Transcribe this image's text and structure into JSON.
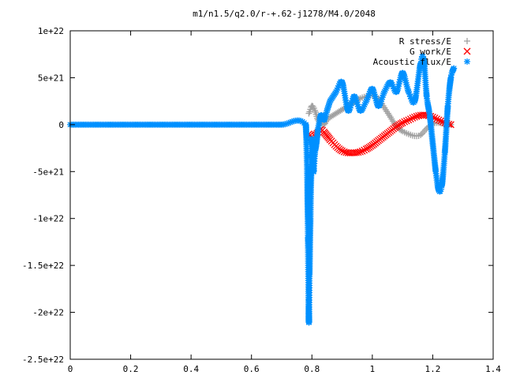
{
  "chart_data": {
    "type": "scatter",
    "title": "m1/n1.5/q2.0/r-+.62-j1278/M4.0/2048",
    "xlabel": "",
    "ylabel": "",
    "xlim": [
      0,
      1.4
    ],
    "ylim": [
      -2.5e+22,
      1e+22
    ],
    "grid": false,
    "legend_position": "top-right",
    "x_ticks": [
      0,
      0.2,
      0.4,
      0.6,
      0.8,
      1,
      1.2,
      1.4
    ],
    "x_tick_labels": [
      "0",
      "0.2",
      "0.4",
      "0.6",
      "0.8",
      "1",
      "1.2",
      "1.4"
    ],
    "y_ticks": [
      1e+22,
      5e+21,
      0,
      -5e+21,
      -1e+22,
      -1.5e+22,
      -2e+22,
      -2.5e+22
    ],
    "y_tick_labels": [
      "1e+22",
      "5e+21",
      "0",
      "-5e+21",
      "-1e+22",
      "-1.5e+22",
      "-2e+22",
      "-2.5e+22"
    ],
    "series": [
      {
        "name": "R stress/E",
        "marker": "+",
        "color": "#a0a0a0",
        "x": [
          0.79,
          0.8,
          0.81,
          0.82,
          0.83,
          0.84,
          0.85,
          0.86,
          0.88,
          0.9,
          0.92,
          0.94,
          0.96,
          0.98,
          1.0,
          1.02,
          1.04,
          1.06,
          1.08,
          1.1,
          1.12,
          1.14,
          1.16,
          1.18,
          1.2,
          1.22,
          1.24,
          1.26
        ],
        "values": [
          1.2e+21,
          2e+21,
          1.5e+21,
          5e+20,
          1e+20,
          0.0,
          5e+20,
          8e+20,
          1.2e+21,
          1.6e+21,
          2e+21,
          2.4e+21,
          2.8e+21,
          3e+21,
          3.1e+21,
          2.8e+21,
          1.8e+21,
          8e+20,
          -2e+20,
          -7e+20,
          -1e+21,
          -1.2e+21,
          -1.1e+21,
          -4e+20,
          1e+20,
          2e+20,
          1e+20,
          0.0
        ]
      },
      {
        "name": "G work/E",
        "marker": "x",
        "color": "#ff0000",
        "x": [
          0.79,
          0.8,
          0.81,
          0.82,
          0.83,
          0.84,
          0.85,
          0.86,
          0.88,
          0.9,
          0.92,
          0.94,
          0.96,
          0.98,
          1.0,
          1.02,
          1.04,
          1.06,
          1.08,
          1.1,
          1.12,
          1.14,
          1.16,
          1.18,
          1.2,
          1.22,
          1.24,
          1.26
        ],
        "values": [
          -1e+21,
          -1.5e+21,
          -1.2e+21,
          -8e+20,
          -5e+20,
          -8e+20,
          -1.2e+21,
          -1.6e+21,
          -2.3e+21,
          -2.8e+21,
          -3e+21,
          -3e+21,
          -2.9e+21,
          -2.6e+21,
          -2.2e+21,
          -1.7e+21,
          -1.2e+21,
          -7e+20,
          -2e+20,
          2e+20,
          5e+20,
          8e+20,
          1e+21,
          1e+21,
          8e+20,
          5e+20,
          2e+20,
          0.0
        ]
      },
      {
        "name": "Acoustic flux/E",
        "marker": "*",
        "color": "#0090ff",
        "x": [
          0,
          0.1,
          0.2,
          0.3,
          0.4,
          0.5,
          0.6,
          0.7,
          0.78,
          0.785,
          0.787,
          0.79,
          0.792,
          0.795,
          0.798,
          0.8,
          0.805,
          0.81,
          0.815,
          0.82,
          0.83,
          0.84,
          0.85,
          0.86,
          0.88,
          0.9,
          0.92,
          0.94,
          0.96,
          0.98,
          1.0,
          1.02,
          1.04,
          1.06,
          1.08,
          1.1,
          1.12,
          1.14,
          1.16,
          1.17,
          1.18,
          1.19,
          1.2,
          1.21,
          1.22,
          1.23,
          1.24,
          1.25,
          1.26,
          1.27
        ],
        "values": [
          0,
          0,
          0,
          0,
          0,
          0,
          0,
          0,
          0,
          -6e+21,
          -1.2e+22,
          -2.1e+22,
          -1.6e+22,
          -1e+22,
          -4.5e+21,
          -1.5e+21,
          -5e+21,
          -3e+21,
          -2e+21,
          -5e+20,
          1e+21,
          5e+20,
          1.5e+21,
          2.5e+21,
          3.5e+21,
          4.5e+21,
          1.5e+21,
          3e+21,
          1.5e+21,
          2.5e+21,
          3.8e+21,
          2e+21,
          3.5e+21,
          4.5e+21,
          3.5e+21,
          5.5e+21,
          3.5e+21,
          2.5e+21,
          6.5e+21,
          7e+21,
          3e+21,
          1e+21,
          -2e+21,
          -5e+21,
          -7e+21,
          -6.5e+21,
          -3e+21,
          2e+21,
          5e+21,
          6e+21
        ]
      }
    ]
  }
}
